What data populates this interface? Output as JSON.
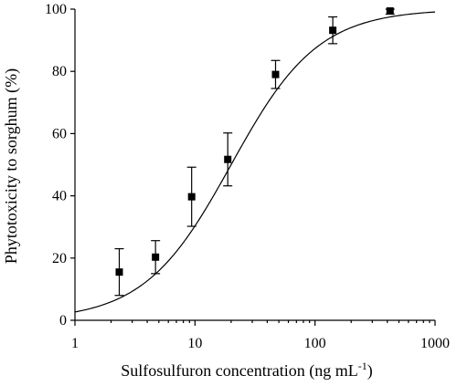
{
  "chart_data": {
    "type": "scatter",
    "x_scale": "log",
    "xlim": [
      1,
      1000
    ],
    "ylim": [
      0,
      100
    ],
    "xlabel": "Sulfosulfuron concentration (ng mL",
    "xlabel_superscript": "-1",
    "xlabel_suffix": ")",
    "ylabel": "Phytotoxicity to sorghum (%)",
    "x_ticks": [
      1,
      10,
      100,
      1000
    ],
    "x_tick_labels": [
      "1",
      "10",
      "100",
      "1000"
    ],
    "y_ticks": [
      0,
      20,
      40,
      60,
      80,
      100
    ],
    "y_tick_labels": [
      "0",
      "20",
      "40",
      "60",
      "80",
      "100"
    ],
    "grid": false,
    "points": [
      {
        "x": 2.34,
        "y": 15.5,
        "err": 7.5
      },
      {
        "x": 4.69,
        "y": 20.3,
        "err": 5.3
      },
      {
        "x": 9.38,
        "y": 39.7,
        "err": 9.5
      },
      {
        "x": 18.75,
        "y": 51.7,
        "err": 8.5
      },
      {
        "x": 46.9,
        "y": 79.0,
        "err": 4.5
      },
      {
        "x": 140.6,
        "y": 93.2,
        "err": 4.3
      },
      {
        "x": 421.9,
        "y": 99.4,
        "err": 1.0
      }
    ],
    "fit_curve": {
      "model": "log-logistic",
      "top": 100,
      "ec50": 20,
      "slope": 1.2
    }
  }
}
